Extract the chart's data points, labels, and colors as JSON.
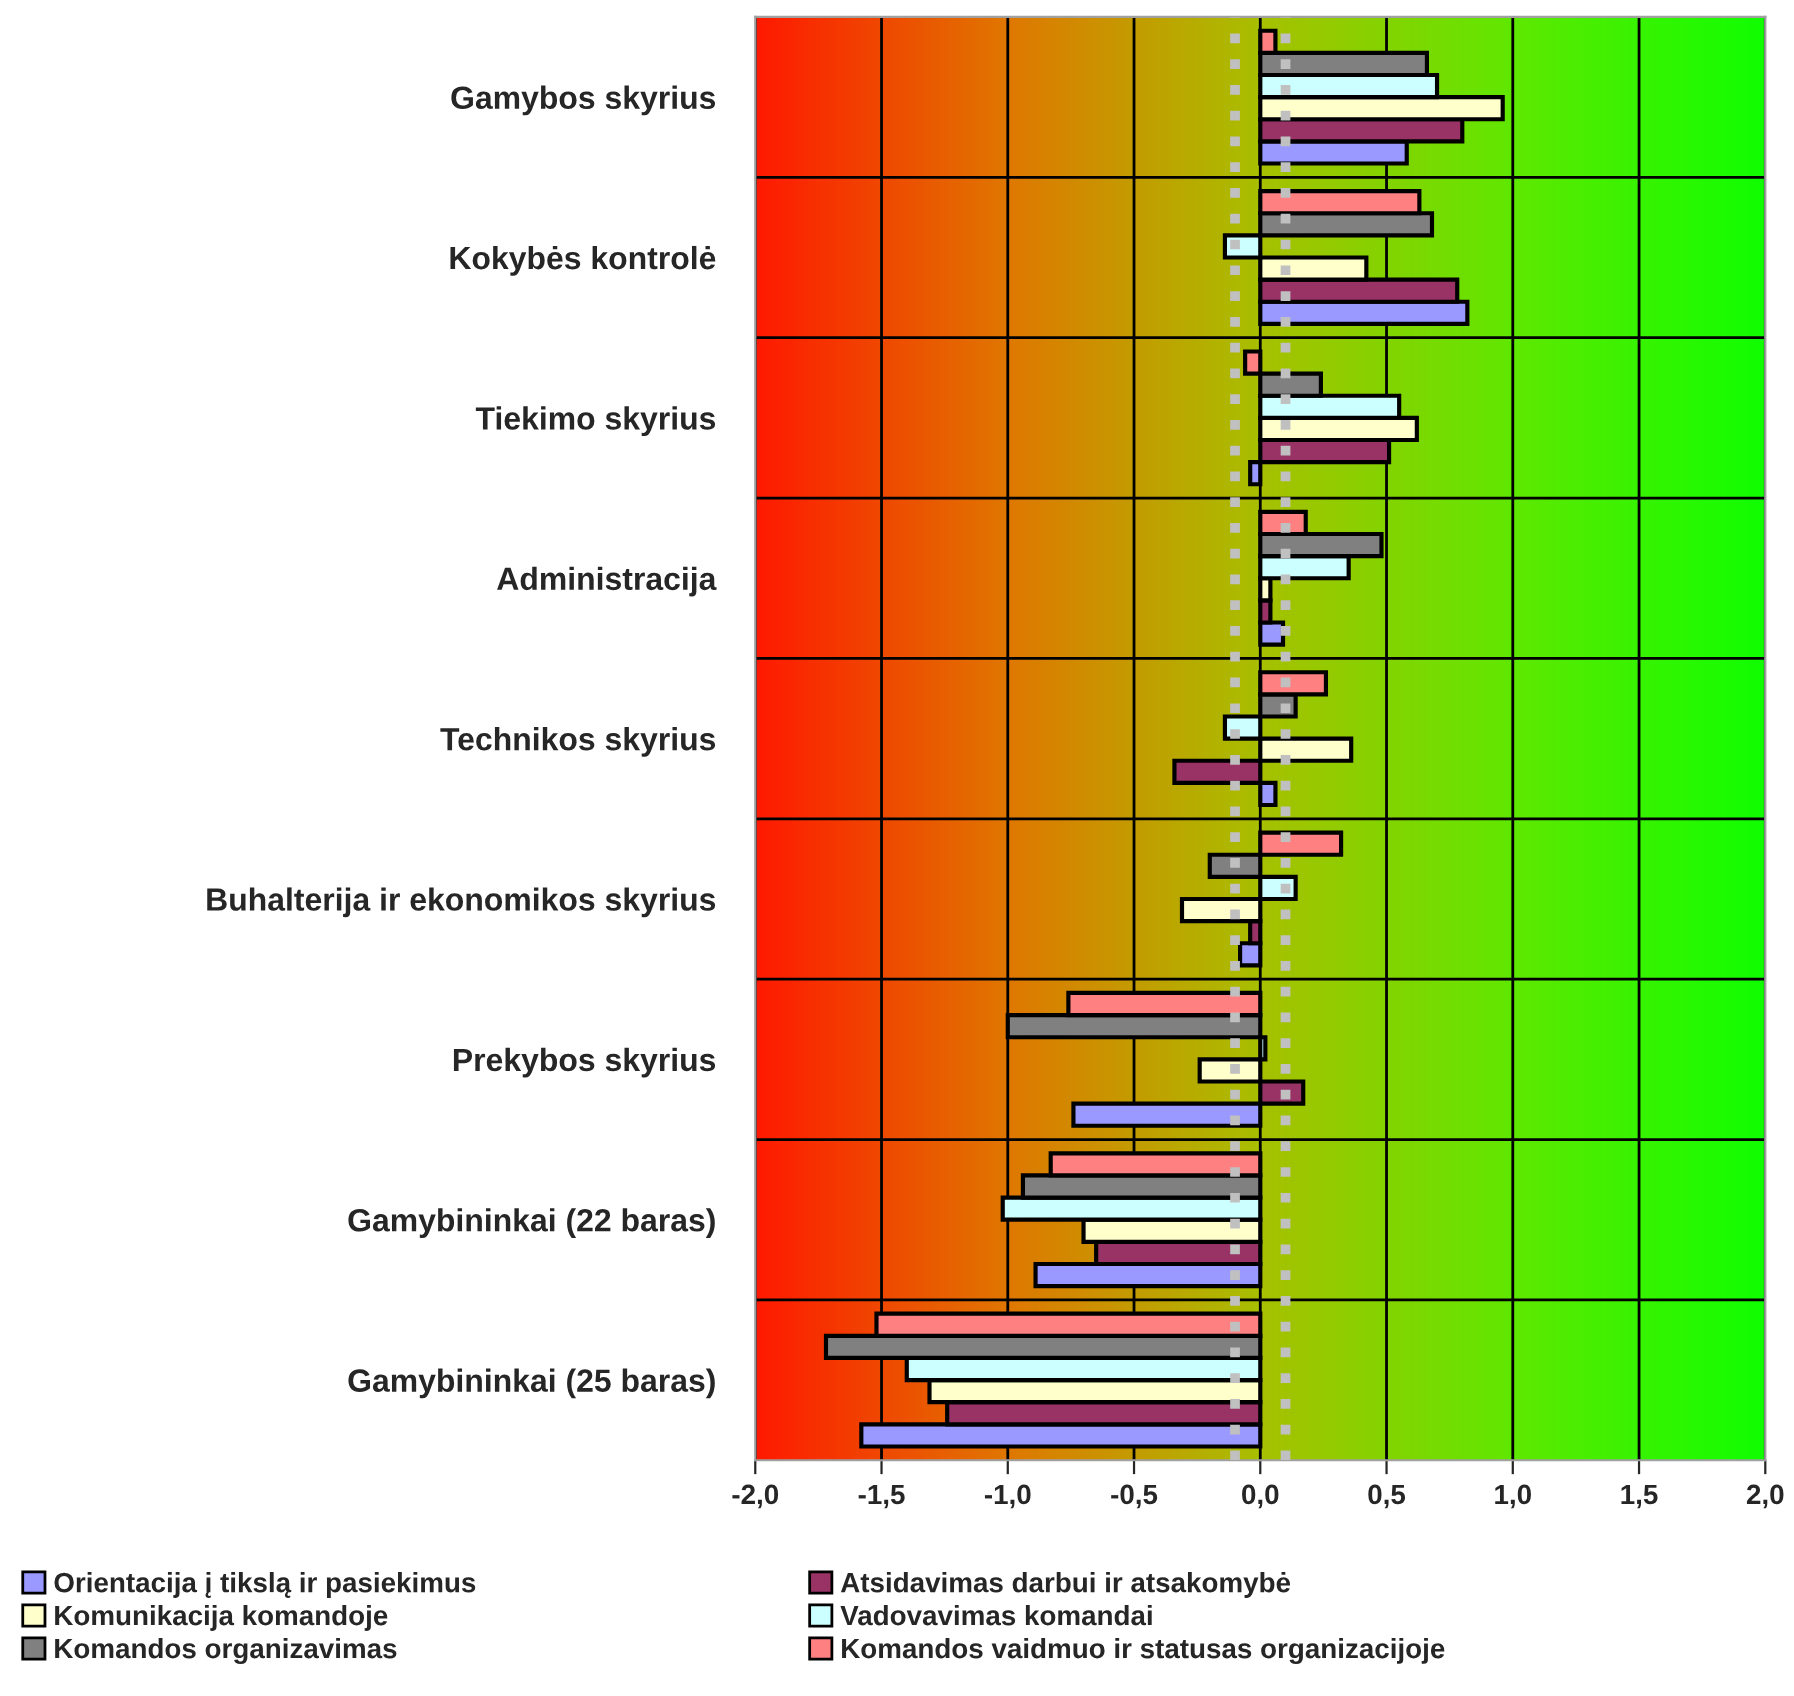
{
  "chart_data": {
    "type": "bar",
    "orientation": "horizontal",
    "categories": [
      "Gamybos skyrius",
      "Kokybės kontrolė",
      "Tiekimo skyrius",
      "Administracija",
      "Technikos skyrius",
      "Buhalterija ir ekonomikos skyrius",
      "Prekybos skyrius",
      "Gamybininkai (22 baras)",
      "Gamybininkai (25 baras)"
    ],
    "series": [
      {
        "name": "Orientacija į tikslą ir pasiekimus",
        "color": "#9999ff",
        "values": [
          0.58,
          0.82,
          -0.04,
          0.09,
          0.06,
          -0.08,
          -0.74,
          -0.89,
          -1.58
        ]
      },
      {
        "name": "Atsidavimas darbui ir atsakomybė",
        "color": "#993366",
        "values": [
          0.8,
          0.78,
          0.51,
          0.04,
          -0.34,
          -0.04,
          0.17,
          -0.65,
          -1.24
        ]
      },
      {
        "name": "Komunikacija komandoje",
        "color": "#ffffcc",
        "values": [
          0.96,
          0.42,
          0.62,
          0.04,
          0.36,
          -0.31,
          -0.24,
          -0.7,
          -1.31
        ]
      },
      {
        "name": "Vadovavimas komandai",
        "color": "#ccffff",
        "values": [
          0.7,
          -0.14,
          0.55,
          0.35,
          -0.14,
          0.14,
          0.02,
          -1.02,
          -1.4
        ]
      },
      {
        "name": "Komandos organizavimas",
        "color": "#808080",
        "values": [
          0.66,
          0.68,
          0.24,
          0.48,
          0.14,
          -0.2,
          -1.0,
          -0.94,
          -1.72
        ]
      },
      {
        "name": "Komandos vaidmuo ir statusas organizacijoje",
        "color": "#ff8080",
        "values": [
          0.06,
          0.63,
          -0.06,
          0.18,
          0.26,
          0.32,
          -0.76,
          -0.83,
          -1.52
        ]
      }
    ],
    "xlim": [
      -2.0,
      2.0
    ],
    "xticks": [
      {
        "value": -2.0,
        "label": "-2,0"
      },
      {
        "value": -1.5,
        "label": "-1,5"
      },
      {
        "value": -1.0,
        "label": "-1,0"
      },
      {
        "value": -0.5,
        "label": "-0,5"
      },
      {
        "value": 0.0,
        "label": "0,0"
      },
      {
        "value": 0.5,
        "label": "0,5"
      },
      {
        "value": 1.0,
        "label": "1,0"
      },
      {
        "value": 1.5,
        "label": "1,5"
      },
      {
        "value": 2.0,
        "label": "2,0"
      }
    ],
    "ref_lines": [
      {
        "axis": "x",
        "value": -0.1,
        "color": "#c0c0c0",
        "line_style": "dotted"
      },
      {
        "axis": "x",
        "value": 0.1,
        "color": "#c0c0c0",
        "line_style": "dotted"
      }
    ],
    "grid": true,
    "legend": "bottom"
  }
}
